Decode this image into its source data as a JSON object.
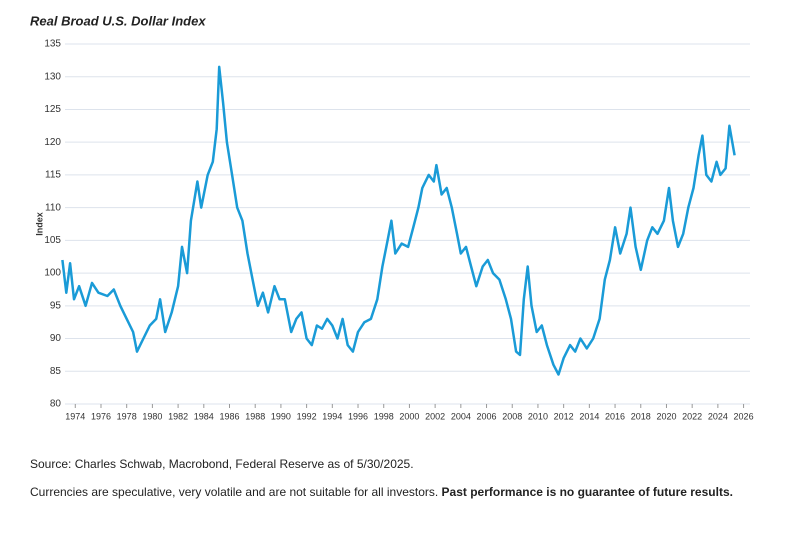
{
  "chart_data": {
    "type": "line",
    "title": "Real Broad U.S. Dollar Index",
    "y_label": "Index",
    "x": [
      1973.0,
      1973.3,
      1973.6,
      1973.9,
      1974.3,
      1974.8,
      1975.3,
      1975.8,
      1976.5,
      1977.0,
      1977.5,
      1978.0,
      1978.5,
      1978.8,
      1979.3,
      1979.8,
      1980.3,
      1980.6,
      1981.0,
      1981.5,
      1982.0,
      1982.3,
      1982.7,
      1983.0,
      1983.5,
      1983.8,
      1984.3,
      1984.7,
      1985.0,
      1985.2,
      1985.5,
      1985.8,
      1986.2,
      1986.6,
      1987.0,
      1987.4,
      1987.8,
      1988.2,
      1988.6,
      1989.0,
      1989.5,
      1989.9,
      1990.3,
      1990.8,
      1991.2,
      1991.6,
      1992.0,
      1992.4,
      1992.8,
      1993.2,
      1993.6,
      1994.0,
      1994.4,
      1994.8,
      1995.2,
      1995.6,
      1996.0,
      1996.5,
      1997.0,
      1997.5,
      1997.9,
      1998.3,
      1998.6,
      1998.9,
      1999.4,
      1999.9,
      2000.3,
      2000.7,
      2001.0,
      2001.5,
      2001.9,
      2002.1,
      2002.5,
      2002.9,
      2003.3,
      2003.7,
      2004.0,
      2004.4,
      2004.8,
      2005.2,
      2005.7,
      2006.1,
      2006.5,
      2007.0,
      2007.5,
      2007.9,
      2008.3,
      2008.6,
      2008.9,
      2009.2,
      2009.5,
      2009.9,
      2010.3,
      2010.7,
      2011.2,
      2011.6,
      2012.0,
      2012.5,
      2012.9,
      2013.3,
      2013.8,
      2014.3,
      2014.8,
      2015.2,
      2015.6,
      2016.0,
      2016.4,
      2016.9,
      2017.2,
      2017.6,
      2018.0,
      2018.5,
      2018.9,
      2019.3,
      2019.8,
      2020.2,
      2020.5,
      2020.9,
      2021.3,
      2021.7,
      2022.1,
      2022.5,
      2022.8,
      2023.1,
      2023.5,
      2023.9,
      2024.2,
      2024.6,
      2024.9,
      2025.3
    ],
    "series": [
      {
        "name": "Real Broad U.S. Dollar Index",
        "color": "#1a9bd7",
        "values": [
          102,
          97,
          101.5,
          96,
          98,
          95,
          98.5,
          97,
          96.5,
          97.5,
          95,
          93,
          91,
          88,
          90,
          92,
          93,
          96,
          91,
          94,
          98,
          104,
          100,
          108,
          114,
          110,
          115,
          117,
          122,
          131.5,
          126,
          120,
          115,
          110,
          108,
          103,
          99,
          95,
          97,
          94,
          98,
          96,
          96,
          91,
          93,
          94,
          90,
          89,
          92,
          91.5,
          93,
          92,
          90,
          93,
          89,
          88,
          91,
          92.5,
          93,
          96,
          101,
          105,
          108,
          103,
          104.5,
          104,
          107,
          110,
          113,
          115,
          114,
          116.5,
          112,
          113,
          110,
          106,
          103,
          104,
          101,
          98,
          101,
          102,
          100,
          99,
          96,
          93,
          88,
          87.5,
          96,
          101,
          95,
          91,
          92,
          89,
          86,
          84.5,
          87,
          89,
          88,
          90,
          88.5,
          90,
          93,
          99,
          102,
          107,
          103,
          106,
          110,
          104,
          100.5,
          105,
          107,
          106,
          108,
          113,
          108,
          104,
          106,
          110,
          113,
          118,
          121,
          115,
          114,
          117,
          115,
          116,
          122.5,
          118
        ]
      }
    ],
    "xlim": [
      1973.2,
      2026.5
    ],
    "ylim": [
      80,
      135
    ],
    "xticks": [
      1974,
      1976,
      1978,
      1980,
      1982,
      1984,
      1986,
      1988,
      1990,
      1992,
      1994,
      1996,
      1998,
      2000,
      2002,
      2004,
      2006,
      2008,
      2010,
      2012,
      2014,
      2016,
      2018,
      2020,
      2022,
      2024,
      2026
    ],
    "yticks": [
      80,
      85,
      90,
      95,
      100,
      105,
      110,
      115,
      120,
      125,
      130,
      135
    ],
    "grid": true
  },
  "notes": {
    "source": "Source: Charles Schwab, Macrobond, Federal Reserve as of 5/30/2025.",
    "disclaimer": "Currencies are speculative, very volatile and are not suitable for all investors.",
    "disclaimer_bold": "Past performance is no guarantee of future results."
  }
}
